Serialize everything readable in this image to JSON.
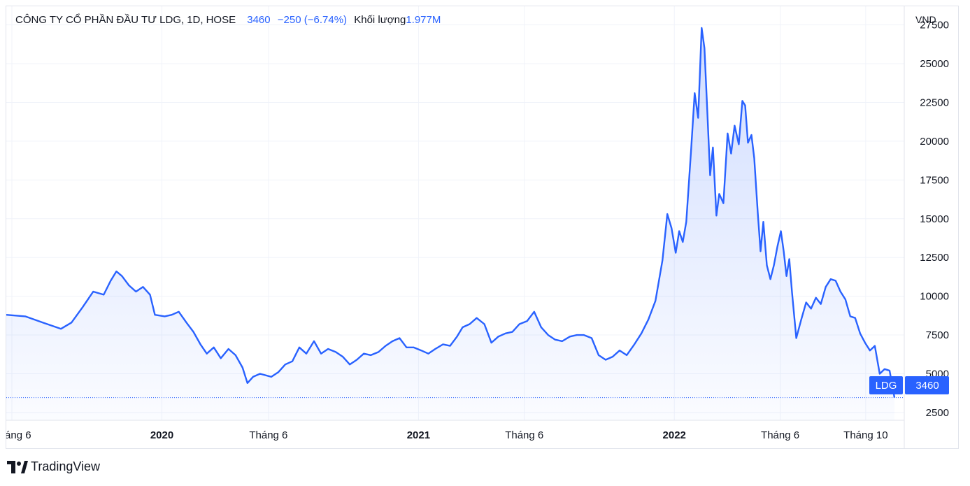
{
  "legend": {
    "company": "CÔNG TY CỔ PHẦN ĐẦU TƯ LDG",
    "interval": "1D",
    "exchange": "HOSE",
    "separator1": ",",
    "last": "3460",
    "change": "−250 (−6.74%)",
    "volume_label": "Khối lượng",
    "volume_value": "1.977M"
  },
  "currency": "VND",
  "symbol_tag": "LDG",
  "price_tag": "3460",
  "footer": {
    "brand": "TradingView"
  },
  "colors": {
    "line": "#2962ff",
    "fill_top": "#d6e0fd",
    "grid": "#f0f3fa",
    "text": "#131722"
  },
  "chart_data": {
    "type": "area",
    "title": "CÔNG TY CỔ PHẦN ĐẦU TƯ LDG, 1D, HOSE",
    "ylabel": "VND",
    "ylim": [
      2000,
      28700
    ],
    "yticks": [
      2500,
      5000,
      7500,
      10000,
      12500,
      15000,
      17500,
      20000,
      22500,
      25000,
      27500
    ],
    "xlim": [
      "2019-05-24",
      "2022-11-25"
    ],
    "xticks": [
      {
        "label": "Tháng 6",
        "date": "2019-06-01",
        "bold": false
      },
      {
        "label": "2020",
        "date": "2020-01-01",
        "bold": true
      },
      {
        "label": "Tháng 6",
        "date": "2020-06-01",
        "bold": false
      },
      {
        "label": "2021",
        "date": "2021-01-01",
        "bold": true
      },
      {
        "label": "Tháng 6",
        "date": "2021-06-01",
        "bold": false
      },
      {
        "label": "2022",
        "date": "2022-01-01",
        "bold": true
      },
      {
        "label": "Tháng 6",
        "date": "2022-06-01",
        "bold": false
      },
      {
        "label": "Tháng 10",
        "date": "2022-10-01",
        "bold": false
      }
    ],
    "last_value": 3460,
    "series": [
      {
        "points": [
          [
            "2019-05-24",
            8800
          ],
          [
            "2019-06-20",
            8700
          ],
          [
            "2019-07-15",
            8300
          ],
          [
            "2019-08-10",
            7900
          ],
          [
            "2019-08-25",
            8300
          ],
          [
            "2019-09-10",
            9300
          ],
          [
            "2019-09-25",
            10300
          ],
          [
            "2019-10-10",
            10100
          ],
          [
            "2019-10-20",
            11000
          ],
          [
            "2019-10-28",
            11600
          ],
          [
            "2019-11-05",
            11300
          ],
          [
            "2019-11-15",
            10700
          ],
          [
            "2019-11-25",
            10300
          ],
          [
            "2019-12-05",
            10600
          ],
          [
            "2019-12-15",
            10100
          ],
          [
            "2019-12-22",
            8800
          ],
          [
            "2020-01-05",
            8700
          ],
          [
            "2020-01-15",
            8800
          ],
          [
            "2020-01-25",
            9000
          ],
          [
            "2020-02-05",
            8300
          ],
          [
            "2020-02-15",
            7700
          ],
          [
            "2020-02-25",
            6900
          ],
          [
            "2020-03-05",
            6300
          ],
          [
            "2020-03-15",
            6700
          ],
          [
            "2020-03-25",
            6000
          ],
          [
            "2020-04-05",
            6600
          ],
          [
            "2020-04-15",
            6200
          ],
          [
            "2020-04-25",
            5400
          ],
          [
            "2020-05-02",
            4400
          ],
          [
            "2020-05-10",
            4800
          ],
          [
            "2020-05-20",
            5000
          ],
          [
            "2020-06-05",
            4800
          ],
          [
            "2020-06-15",
            5100
          ],
          [
            "2020-06-25",
            5600
          ],
          [
            "2020-07-05",
            5800
          ],
          [
            "2020-07-15",
            6700
          ],
          [
            "2020-07-25",
            6300
          ],
          [
            "2020-08-05",
            7100
          ],
          [
            "2020-08-15",
            6300
          ],
          [
            "2020-08-25",
            6600
          ],
          [
            "2020-09-05",
            6400
          ],
          [
            "2020-09-15",
            6100
          ],
          [
            "2020-09-25",
            5600
          ],
          [
            "2020-10-05",
            5900
          ],
          [
            "2020-10-15",
            6300
          ],
          [
            "2020-10-25",
            6200
          ],
          [
            "2020-11-05",
            6400
          ],
          [
            "2020-11-15",
            6800
          ],
          [
            "2020-11-25",
            7100
          ],
          [
            "2020-12-05",
            7300
          ],
          [
            "2020-12-15",
            6700
          ],
          [
            "2020-12-25",
            6700
          ],
          [
            "2021-01-05",
            6500
          ],
          [
            "2021-01-15",
            6300
          ],
          [
            "2021-01-25",
            6600
          ],
          [
            "2021-02-05",
            6900
          ],
          [
            "2021-02-15",
            6800
          ],
          [
            "2021-02-25",
            7400
          ],
          [
            "2021-03-05",
            8000
          ],
          [
            "2021-03-15",
            8200
          ],
          [
            "2021-03-25",
            8600
          ],
          [
            "2021-04-05",
            8200
          ],
          [
            "2021-04-15",
            7000
          ],
          [
            "2021-04-25",
            7400
          ],
          [
            "2021-05-05",
            7600
          ],
          [
            "2021-05-15",
            7700
          ],
          [
            "2021-05-25",
            8200
          ],
          [
            "2021-06-05",
            8400
          ],
          [
            "2021-06-15",
            9000
          ],
          [
            "2021-06-25",
            8000
          ],
          [
            "2021-07-05",
            7500
          ],
          [
            "2021-07-15",
            7200
          ],
          [
            "2021-07-25",
            7100
          ],
          [
            "2021-08-05",
            7400
          ],
          [
            "2021-08-15",
            7500
          ],
          [
            "2021-08-25",
            7500
          ],
          [
            "2021-09-05",
            7300
          ],
          [
            "2021-09-15",
            6200
          ],
          [
            "2021-09-25",
            5900
          ],
          [
            "2021-10-05",
            6100
          ],
          [
            "2021-10-15",
            6500
          ],
          [
            "2021-10-25",
            6200
          ],
          [
            "2021-11-05",
            6900
          ],
          [
            "2021-11-15",
            7600
          ],
          [
            "2021-11-25",
            8500
          ],
          [
            "2021-12-05",
            9700
          ],
          [
            "2021-12-15",
            12300
          ],
          [
            "2021-12-22",
            15300
          ],
          [
            "2021-12-28",
            14400
          ],
          [
            "2022-01-03",
            12800
          ],
          [
            "2022-01-08",
            14200
          ],
          [
            "2022-01-13",
            13500
          ],
          [
            "2022-01-18",
            14800
          ],
          [
            "2022-01-25",
            19500
          ],
          [
            "2022-01-30",
            23100
          ],
          [
            "2022-02-04",
            21500
          ],
          [
            "2022-02-09",
            27300
          ],
          [
            "2022-02-13",
            26000
          ],
          [
            "2022-02-17",
            22000
          ],
          [
            "2022-02-21",
            17800
          ],
          [
            "2022-02-25",
            19600
          ],
          [
            "2022-03-02",
            15200
          ],
          [
            "2022-03-06",
            16600
          ],
          [
            "2022-03-12",
            16000
          ],
          [
            "2022-03-18",
            20500
          ],
          [
            "2022-03-23",
            19200
          ],
          [
            "2022-03-28",
            21000
          ],
          [
            "2022-04-03",
            19800
          ],
          [
            "2022-04-08",
            22600
          ],
          [
            "2022-04-12",
            22300
          ],
          [
            "2022-04-16",
            19900
          ],
          [
            "2022-04-21",
            20400
          ],
          [
            "2022-04-25",
            18900
          ],
          [
            "2022-04-30",
            15400
          ],
          [
            "2022-05-04",
            12900
          ],
          [
            "2022-05-08",
            14800
          ],
          [
            "2022-05-13",
            12000
          ],
          [
            "2022-05-18",
            11100
          ],
          [
            "2022-05-23",
            12000
          ],
          [
            "2022-05-28",
            13200
          ],
          [
            "2022-06-02",
            14200
          ],
          [
            "2022-06-06",
            12900
          ],
          [
            "2022-06-10",
            11300
          ],
          [
            "2022-06-14",
            12400
          ],
          [
            "2022-06-18",
            10200
          ],
          [
            "2022-06-24",
            7300
          ],
          [
            "2022-07-01",
            8500
          ],
          [
            "2022-07-08",
            9600
          ],
          [
            "2022-07-15",
            9200
          ],
          [
            "2022-07-22",
            9900
          ],
          [
            "2022-07-29",
            9500
          ],
          [
            "2022-08-05",
            10600
          ],
          [
            "2022-08-12",
            11100
          ],
          [
            "2022-08-19",
            11000
          ],
          [
            "2022-08-26",
            10300
          ],
          [
            "2022-09-02",
            9800
          ],
          [
            "2022-09-09",
            8700
          ],
          [
            "2022-09-16",
            8600
          ],
          [
            "2022-09-23",
            7600
          ],
          [
            "2022-09-30",
            7000
          ],
          [
            "2022-10-07",
            6500
          ],
          [
            "2022-10-14",
            6800
          ],
          [
            "2022-10-21",
            5000
          ],
          [
            "2022-10-28",
            5300
          ],
          [
            "2022-11-04",
            5200
          ],
          [
            "2022-11-11",
            3460
          ]
        ]
      }
    ]
  }
}
